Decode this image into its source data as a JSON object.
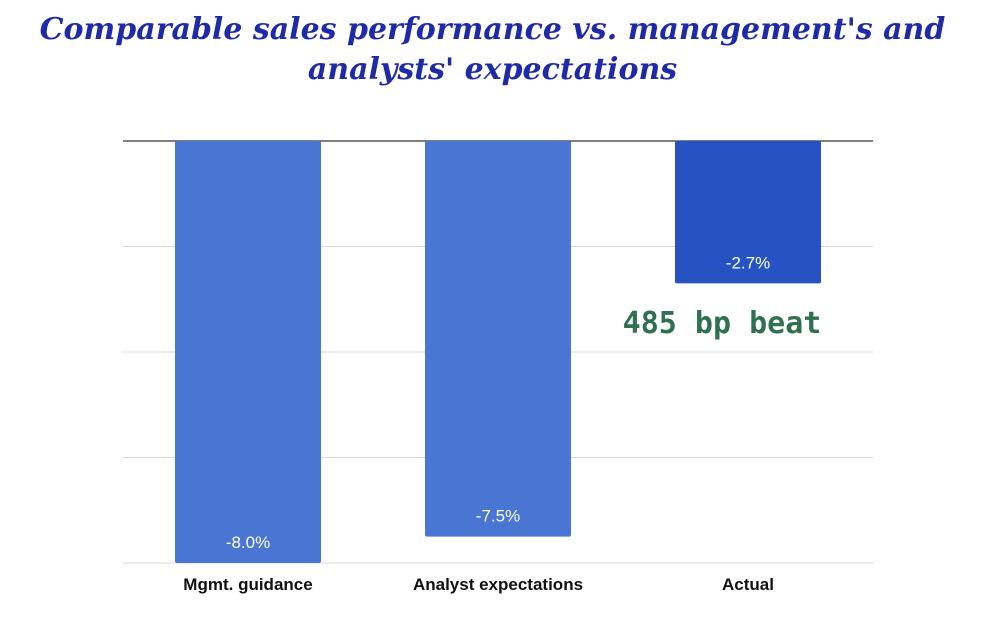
{
  "title_lines": [
    "Comparable sales performance vs. management's and",
    "analysts' expectations"
  ],
  "annotation": "485 bp beat",
  "colors": {
    "title": "#1f2aa8",
    "bar_default": "#4a76d3",
    "bar_highlight": "#2653c4",
    "annotation": "#2e7050",
    "grid": "#d9d9d9",
    "baseline": "#333333"
  },
  "chart_data": {
    "type": "bar",
    "title": "Comparable sales performance vs. management's and analysts' expectations",
    "categories": [
      "Mgmt. guidance",
      "Analyst expectations",
      "Actual"
    ],
    "values": [
      -8.0,
      -7.5,
      -2.7
    ],
    "value_labels": [
      "-8.0%",
      "-7.5%",
      "-2.7%"
    ],
    "ylim": [
      -8.0,
      0
    ],
    "grid": true,
    "legend": "none"
  }
}
